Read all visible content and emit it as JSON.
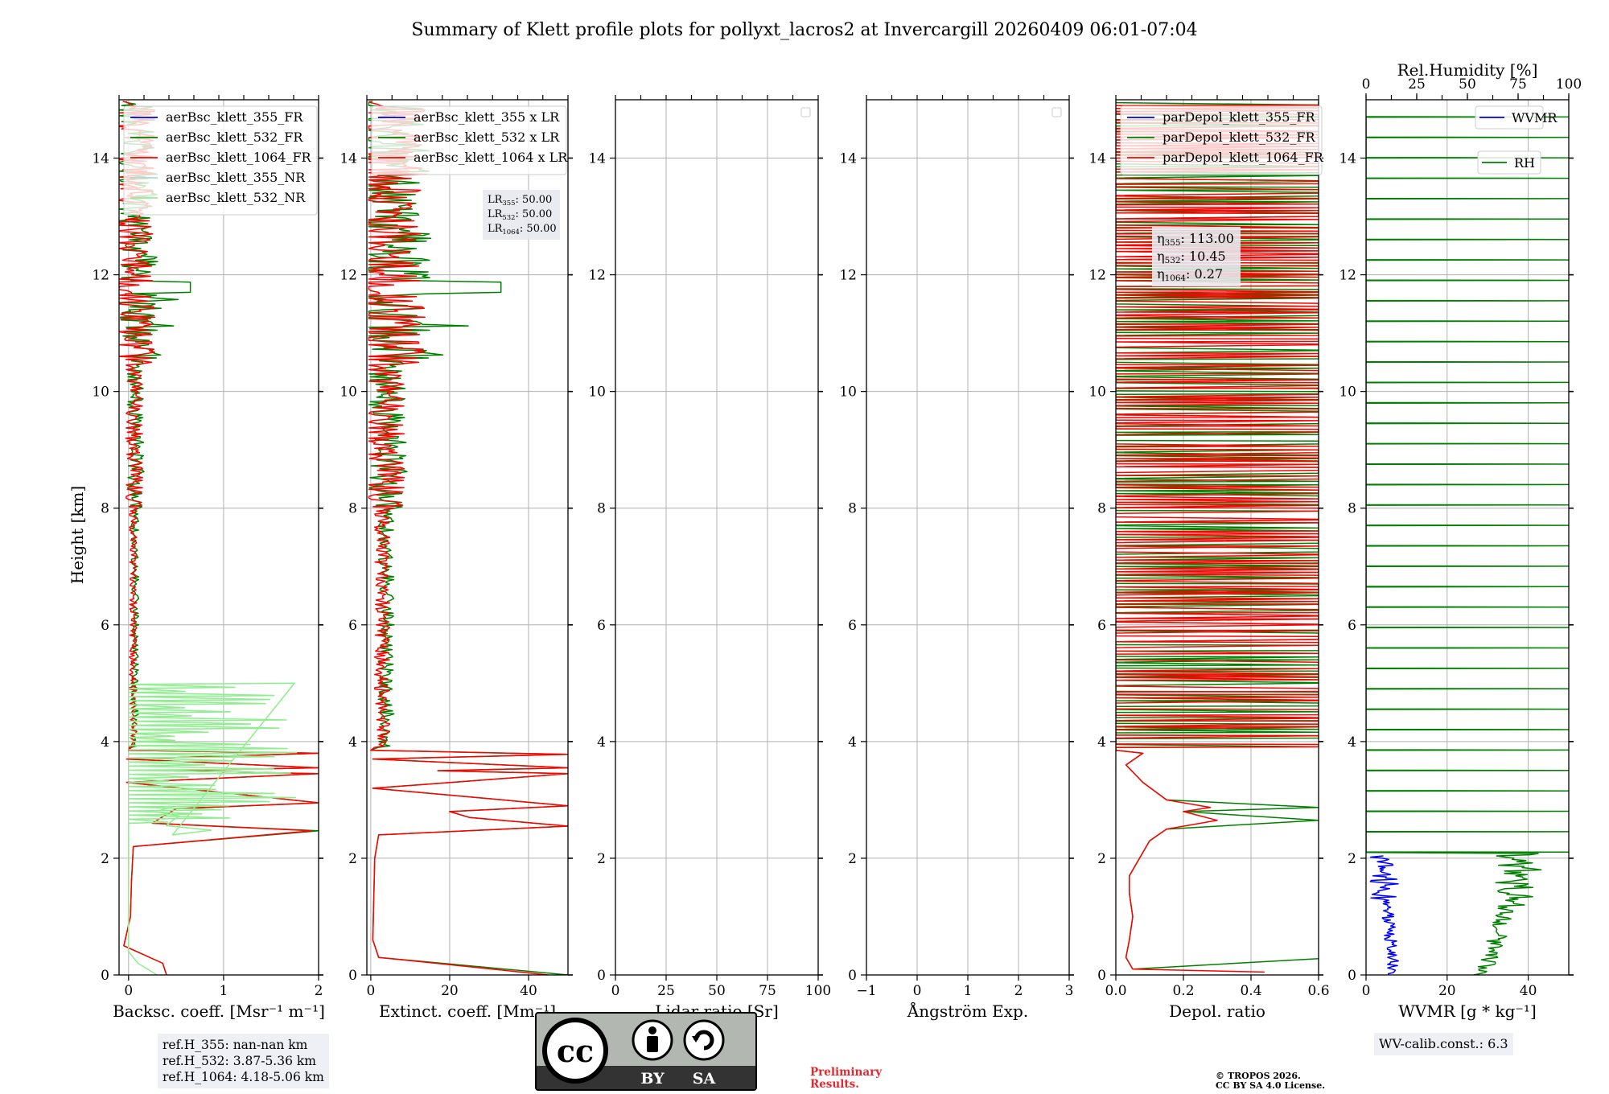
{
  "title": "Summary of Klett profile plots for pollyxt_lacros2 at Invercargill 20260409 06:01-07:04",
  "y_label": "Height [km]",
  "colors": {
    "c355": "#0000ff",
    "c532": "#008000",
    "c1064": "#ff0000",
    "c355nr": "#a0e0c8",
    "c532nr": "#90ee90",
    "wv": "#0000ff",
    "rh": "#008000"
  },
  "chart_data": [
    {
      "id": "backscatter",
      "type": "line",
      "xlabel": "Backsc. coeff. [Msr⁻¹ m⁻¹]",
      "xlim": [
        -0.1,
        2
      ],
      "xticks": [
        0,
        1,
        2
      ],
      "xtick_labels": [
        "0",
        "1",
        "2"
      ],
      "ylim": [
        0,
        15
      ],
      "yticks": [
        0,
        2,
        4,
        6,
        8,
        10,
        12,
        14
      ],
      "grid": true,
      "legend_location": "upper-left",
      "series": [
        {
          "name": "aerBsc_klett_355_FR",
          "color": "#0000ff",
          "profile": "none"
        },
        {
          "name": "aerBsc_klett_532_FR",
          "color": "#008000",
          "profile": "bsc532"
        },
        {
          "name": "aerBsc_klett_1064_FR",
          "color": "#ff0000",
          "profile": "bsc1064"
        },
        {
          "name": "aerBsc_klett_355_NR",
          "color": "#a0e0c8",
          "profile": "none"
        },
        {
          "name": "aerBsc_klett_532_NR",
          "color": "#90ee90",
          "profile": "bsc532nr"
        }
      ],
      "ref_heights": [
        "ref.H_355: nan-nan km",
        "ref.H_532: 3.87-5.36 km",
        "ref.H_1064: 4.18-5.06 km"
      ]
    },
    {
      "id": "extinction",
      "type": "line",
      "xlabel": "Extinct. coeff. [Mm⁻¹]",
      "xlim": [
        -1,
        50
      ],
      "xticks": [
        0,
        20,
        40
      ],
      "xtick_labels": [
        "0",
        "20",
        "40"
      ],
      "ylim": [
        0,
        15
      ],
      "yticks": [
        0,
        2,
        4,
        6,
        8,
        10,
        12,
        14
      ],
      "grid": true,
      "legend_location": "upper-left",
      "series": [
        {
          "name": "aerBsc_klett_355 x LR",
          "color": "#0000ff",
          "profile": "none"
        },
        {
          "name": "aerBsc_klett_532 x LR",
          "color": "#008000",
          "profile": "ext532"
        },
        {
          "name": "aerBsc_klett_1064 x LR",
          "color": "#ff0000",
          "profile": "ext1064"
        }
      ],
      "lidar_ratios": [
        {
          "label": "LR",
          "sub": "355",
          "value": ": 50.00"
        },
        {
          "label": "LR",
          "sub": "532",
          "value": ": 50.00"
        },
        {
          "label": "LR",
          "sub": "1064",
          "value": ": 50.00"
        }
      ]
    },
    {
      "id": "lidar_ratio",
      "type": "line",
      "xlabel": "Lidar ratio [Sr]",
      "xlim": [
        0,
        100
      ],
      "xticks": [
        0,
        25,
        50,
        75,
        100
      ],
      "xtick_labels": [
        "0",
        "25",
        "50",
        "75",
        "100"
      ],
      "ylim": [
        0,
        15
      ],
      "yticks": [
        0,
        2,
        4,
        6,
        8,
        10,
        12,
        14
      ],
      "grid": true,
      "legend_location": "upper-right",
      "series": []
    },
    {
      "id": "angstrom",
      "type": "line",
      "xlabel": "Ångström Exp.",
      "xlim": [
        -1,
        3
      ],
      "xticks": [
        -1,
        0,
        1,
        2,
        3
      ],
      "xtick_labels": [
        "−1",
        "0",
        "1",
        "2",
        "3"
      ],
      "ylim": [
        0,
        15
      ],
      "yticks": [
        0,
        2,
        4,
        6,
        8,
        10,
        12,
        14
      ],
      "grid": true,
      "legend_location": "upper-right",
      "series": []
    },
    {
      "id": "depol",
      "type": "line",
      "xlabel": "Depol. ratio",
      "xlim": [
        0,
        0.6
      ],
      "xticks": [
        0,
        0.2,
        0.4,
        0.6
      ],
      "xtick_labels": [
        "0.0",
        "0.2",
        "0.4",
        "0.6"
      ],
      "ylim": [
        0,
        15
      ],
      "yticks": [
        0,
        2,
        4,
        6,
        8,
        10,
        12,
        14
      ],
      "grid": true,
      "legend_location": "upper-left",
      "series": [
        {
          "name": "parDepol_klett_355_FR",
          "color": "#0000ff",
          "profile": "none"
        },
        {
          "name": "parDepol_klett_532_FR",
          "color": "#008000",
          "profile": "dep532"
        },
        {
          "name": "parDepol_klett_1064_FR",
          "color": "#ff0000",
          "profile": "dep1064"
        }
      ],
      "eta": [
        {
          "label": "η",
          "sub": "355",
          "value": ": 113.00"
        },
        {
          "label": "η",
          "sub": "532",
          "value": ": 10.45"
        },
        {
          "label": "η",
          "sub": "1064",
          "value": ": 0.27"
        }
      ]
    },
    {
      "id": "wvmr",
      "type": "line",
      "xlabel": "WVMR [g * kg⁻¹]",
      "xlim": [
        0,
        50
      ],
      "xticks": [
        0,
        20,
        40
      ],
      "xtick_labels": [
        "0",
        "20",
        "40"
      ],
      "ylim": [
        0,
        15
      ],
      "yticks": [
        0,
        2,
        4,
        6,
        8,
        10,
        12,
        14
      ],
      "top_xlabel": "Rel.Humidity [%]",
      "top_xlim": [
        0,
        100
      ],
      "top_xticks": [
        0,
        25,
        50,
        75,
        100
      ],
      "top_xtick_labels": [
        "0",
        "25",
        "50",
        "75",
        "100"
      ],
      "grid": true,
      "series": [
        {
          "name": "WVMR",
          "color": "#0000ff",
          "profile": "wvmr"
        },
        {
          "name": "RH",
          "color": "#008000",
          "profile": "rh"
        }
      ],
      "calib": "WV-calib.const.: 6.3"
    }
  ],
  "license": {
    "cc": "cc",
    "by": "BY",
    "sa": "SA"
  },
  "preliminary": [
    "Preliminary",
    "Results."
  ],
  "copyright": [
    "© TROPOS 2026.",
    "CC BY SA 4.0 License."
  ]
}
